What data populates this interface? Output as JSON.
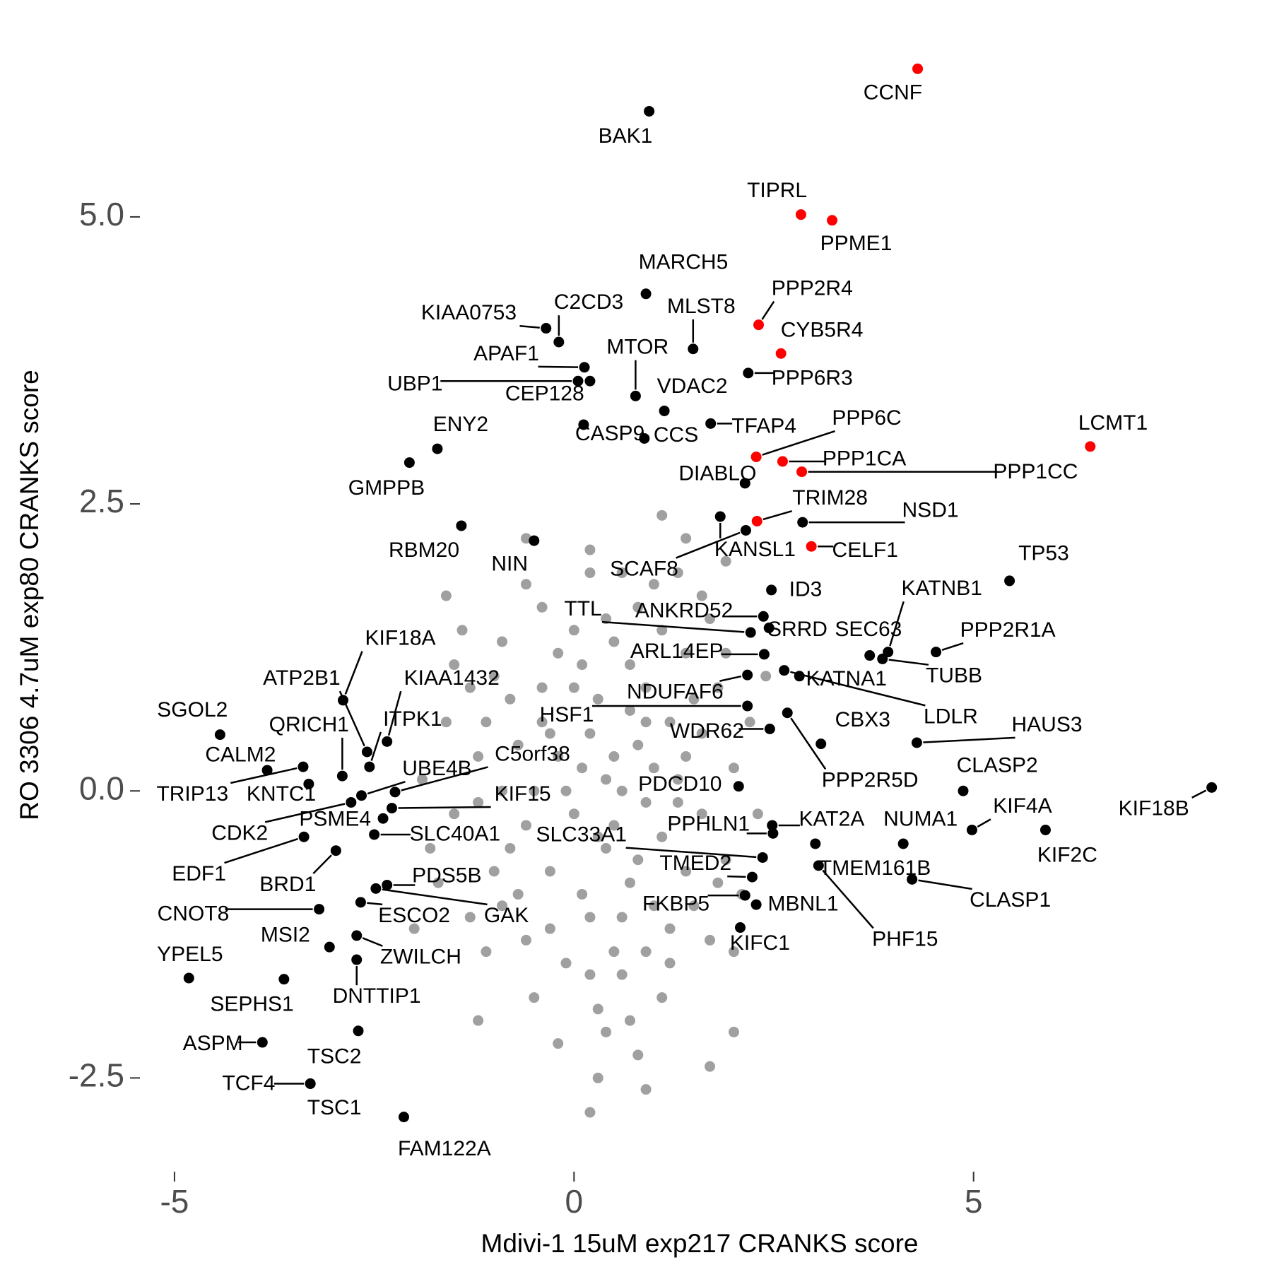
{
  "chart_data": {
    "type": "scatter",
    "x_label": "Mdivi-1 15uM exp217 CRANKS score",
    "y_label": "RO 3306 4.7uM exp80 CRANKS score",
    "xlim": [
      -5.4,
      8.1
    ],
    "ylim": [
      -3.2,
      6.6
    ],
    "xticks": [
      -5,
      0,
      5
    ],
    "yticks": [
      {
        "value": -2.5,
        "label": "-2.5"
      },
      {
        "value": 0,
        "label": "0.0"
      },
      {
        "value": 2.5,
        "label": "2.5"
      },
      {
        "value": 5,
        "label": "5.0"
      }
    ],
    "grid": false,
    "series": [
      {
        "color": "#a0a0a0",
        "x": [
          0.1,
          0.5,
          -0.4,
          0.9,
          -0.8,
          1.3,
          0.2,
          -0.2,
          0.7,
          1.6,
          -1.2,
          0.4,
          -0.6,
          1.1,
          0.0,
          -1.0,
          0.8,
          1.9,
          -0.3,
          0.3,
          1.4,
          -1.5,
          0.6,
          -0.9,
          1.2,
          0.2,
          -0.5,
          1.7,
          0.9,
          -1.3,
          0.5,
          -0.1,
          1.0,
          2.0,
          -1.7,
          0.4,
          0.7,
          -0.7,
          1.5,
          0.0,
          -1.1,
          0.3,
          1.8,
          -0.4,
          0.6,
          1.2,
          -0.2,
          -1.4,
          0.9,
          1.6,
          -0.8,
          0.1,
          0.5,
          -1.6,
          1.1,
          2.1,
          -0.6,
          0.2,
          1.4,
          -1.0,
          0.8,
          -0.3,
          1.0,
          -1.9,
          0.4,
          1.3,
          -0.9,
          0.6,
          1.9,
          -0.5,
          0.0,
          1.5,
          -1.2,
          0.7,
          2.2,
          -0.1,
          0.3,
          1.1,
          -0.7,
          0.9,
          1.7,
          -1.5,
          0.5,
          -0.2,
          1.3,
          0.1,
          -1.3,
          2.0,
          0.8,
          -0.4,
          1.0,
          0.2,
          1.6,
          -0.9,
          0.4,
          1.2,
          -1.8,
          0.6,
          -0.6,
          1.4,
          0.8,
          2.3,
          -1.1,
          0.3,
          1.8,
          -0.3,
          0.7,
          1.9,
          0.2,
          -2.0,
          2.0,
          0.9,
          1.4,
          -1.6,
          0.2,
          1.7,
          -1.2,
          2.4,
          1.1,
          -0.6
        ],
        "values": [
          0.2,
          -0.3,
          0.6,
          0.9,
          -0.5,
          0.1,
          -1.1,
          1.2,
          -0.8,
          0.5,
          0.3,
          1.5,
          -1.3,
          -0.4,
          -0.2,
          1.0,
          0.4,
          -0.6,
          -0.7,
          0.8,
          1.2,
          -0.2,
          -1.6,
          -1.0,
          -1.2,
          1.9,
          0.0,
          1.5,
          -0.1,
          0.9,
          0.3,
          -1.5,
          1.8,
          0.2,
          -0.8,
          -0.5,
          1.1,
          0.4,
          -1.0,
          0.9,
          -1.4,
          -1.9,
          0.9,
          1.6,
          0.0,
          0.6,
          0.3,
          1.4,
          -1.4,
          -0.2,
          0.8,
          -0.9,
          1.3,
          0.6,
          -1.8,
          -0.9,
          -0.3,
          0.5,
          -0.7,
          -0.7,
          1.6,
          -1.2,
          0.2,
          0.1,
          -2.1,
          1.9,
          1.3,
          -1.1,
          1.2,
          -1.8,
          1.4,
          0.8,
          -0.1,
          -2.0,
          0.6,
          0.0,
          -0.4,
          1.4,
          -0.9,
          0.6,
          -1.3,
          1.1,
          -1.4,
          -2.2,
          -0.1,
          1.1,
          -1.1,
          -1.4,
          -0.6,
          0.9,
          -1.0,
          -1.6,
          1.7,
          0.0,
          0.1,
          -1.5,
          -0.5,
          1.9,
          1.8,
          0.3,
          -2.3,
          -0.2,
          0.6,
          -2.5,
          -0.8,
          0.5,
          0.7,
          2.0,
          2.1,
          -1.2,
          -2.1,
          -2.6,
          2.2,
          1.7,
          -2.8,
          -2.4,
          -2.0,
          1.0,
          2.4,
          2.2
        ]
      },
      {
        "color": "#000000",
        "labels": [
          "BAK1",
          "MARCH5",
          "C2CD3",
          "KIAA0753",
          "MLST8",
          "APAF1",
          "MTOR",
          "PPP6R3",
          "UBP1",
          "CEP128",
          "VDAC2",
          "ENY2",
          "GMPPB",
          "TFAP4",
          "CASP9",
          "CCS",
          "DIABLO",
          "NSD1",
          "KANSL1",
          "SCAF8",
          "RBM20",
          "NIN",
          "TP53",
          "ID3",
          "KATNB1",
          "TTL",
          "ANKRD52",
          "SRRD",
          "SEC63",
          "PPP2R1A",
          "ARL14EP",
          "TUBB",
          "KATNA1",
          "LDLR",
          "NDUFAF6",
          "HSF1",
          "CBX3",
          "HAUS3",
          "WDR62",
          "PPP2R5D",
          "CLASP2",
          "KIF18B",
          "KIF4A",
          "KIF2C",
          "NUMA1",
          "PDCD10",
          "KAT2A",
          "PPHLN1",
          "SLC33A1",
          "TMED2",
          "TMEM161B",
          "PHF15",
          "CLASP1",
          "FKBP5",
          "MBNL1",
          "KIFC1",
          "SGOL2",
          "KIF18A",
          "ATP2B1",
          "KIAA1432",
          "QRICH1",
          "ITPK1",
          "CALM2",
          "TRIP13",
          "KNTC1",
          "C5orf38",
          "UBE4B",
          "KIF15",
          "PSME4",
          "CDK2",
          "EDF1",
          "SLC40A1",
          "BRD1",
          "CNOT8",
          "PDS5B",
          "ESCO2",
          "GAK",
          "MSI2",
          "ZWILCH",
          "YPEL5",
          "SEPHS1",
          "ASPM",
          "DNTTIP1",
          "TSC2",
          "TCF4",
          "TSC1",
          "FAM122A"
        ],
        "x": [
          0.94,
          0.9,
          -0.19,
          -0.35,
          1.49,
          0.13,
          0.77,
          2.18,
          0.05,
          0.2,
          1.13,
          -1.71,
          -2.06,
          1.71,
          0.12,
          0.88,
          2.14,
          2.86,
          1.83,
          2.15,
          -1.41,
          -0.5,
          5.45,
          2.47,
          3.93,
          2.21,
          2.37,
          2.44,
          3.7,
          4.53,
          2.38,
          3.86,
          2.82,
          2.63,
          2.17,
          2.17,
          3.09,
          4.29,
          2.45,
          2.67,
          4.87,
          7.98,
          4.98,
          5.9,
          4.12,
          2.06,
          2.48,
          2.49,
          2.36,
          2.23,
          3.02,
          3.06,
          4.23,
          2.14,
          2.28,
          2.08,
          -4.43,
          -2.89,
          -2.59,
          -2.34,
          -2.9,
          -2.56,
          -3.84,
          -3.39,
          -3.32,
          -2.24,
          -2.66,
          -2.28,
          -2.39,
          -2.79,
          -3.38,
          -2.5,
          -2.98,
          -3.19,
          -2.34,
          -2.67,
          -2.48,
          -3.06,
          -2.72,
          -4.82,
          -3.63,
          -3.9,
          -2.72,
          -2.7,
          -3.3,
          -3.3,
          -2.13
        ],
        "values": [
          5.92,
          4.33,
          3.91,
          4.03,
          3.85,
          3.69,
          3.44,
          3.64,
          3.57,
          3.57,
          3.31,
          2.98,
          2.86,
          3.2,
          3.19,
          3.07,
          2.68,
          2.34,
          2.39,
          2.27,
          2.31,
          2.18,
          1.83,
          1.75,
          1.21,
          1.38,
          1.52,
          1.42,
          1.18,
          1.21,
          1.19,
          1.15,
          1.0,
          1.05,
          1.01,
          0.74,
          0.41,
          0.42,
          0.54,
          0.68,
          0.0,
          0.03,
          -0.34,
          -0.34,
          -0.46,
          0.04,
          -0.3,
          -0.37,
          -0.58,
          -0.75,
          -0.46,
          -0.65,
          -0.77,
          -0.91,
          -0.99,
          -1.19,
          0.49,
          0.79,
          0.34,
          0.43,
          0.13,
          0.21,
          0.18,
          0.21,
          0.06,
          -0.01,
          -0.04,
          -0.15,
          -0.24,
          -0.1,
          -0.4,
          -0.38,
          -0.52,
          -1.03,
          -0.82,
          -0.97,
          -0.85,
          -1.36,
          -1.26,
          -1.63,
          -1.64,
          -2.19,
          -1.47,
          -2.09,
          -2.55,
          -2.55,
          -2.84
        ]
      },
      {
        "color": "#ff0000",
        "labels": [
          "CCNF",
          "TIPRL",
          "PPME1",
          "PPP2R4",
          "CYB5R4",
          "LCMT1",
          "PPP6C",
          "PPP1CA",
          "PPP1CC",
          "TRIM28",
          "CELF1"
        ],
        "x": [
          4.3,
          2.84,
          3.23,
          2.31,
          2.59,
          6.46,
          2.28,
          2.61,
          2.85,
          2.29,
          2.97
        ],
        "values": [
          6.29,
          5.02,
          4.97,
          4.06,
          3.81,
          3.0,
          2.91,
          2.87,
          2.78,
          2.35,
          2.13
        ]
      }
    ]
  }
}
